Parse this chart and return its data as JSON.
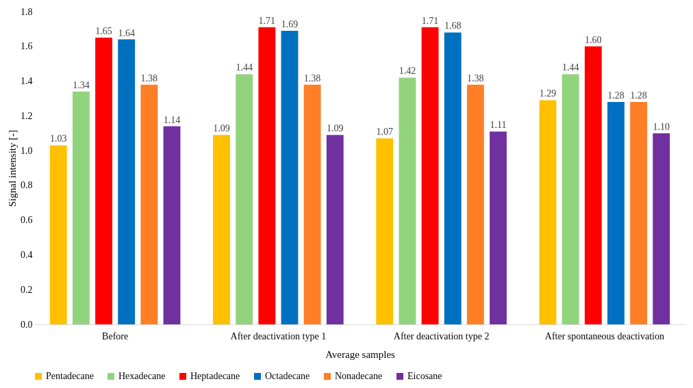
{
  "chart_data": {
    "type": "bar",
    "xlabel": "Average samples",
    "ylabel": "Signal intensity [-]",
    "categories": [
      "Before",
      "After deactivation type 1",
      "After deactivation type 2",
      "After spontaneous deactivation"
    ],
    "series": [
      {
        "name": "Pentadecane",
        "color": "#ffc000",
        "values": [
          1.03,
          1.09,
          1.07,
          1.29
        ],
        "value_labels": [
          "1.03",
          "1.09",
          "1.07",
          "1.29"
        ]
      },
      {
        "name": "Hexadecane",
        "color": "#92d37e",
        "values": [
          1.34,
          1.44,
          1.42,
          1.44
        ],
        "value_labels": [
          "1.34",
          "1.44",
          "1.42",
          "1.44"
        ]
      },
      {
        "name": "Heptadecane",
        "color": "#ff0000",
        "values": [
          1.65,
          1.71,
          1.71,
          1.6
        ],
        "value_labels": [
          "1.65",
          "1.71",
          "1.71",
          "1.60"
        ]
      },
      {
        "name": "Octadecane",
        "color": "#0070c0",
        "values": [
          1.64,
          1.69,
          1.68,
          1.28
        ],
        "value_labels": [
          "1.64",
          "1.69",
          "1.68",
          "1.28"
        ]
      },
      {
        "name": "Nonadecane",
        "color": "#ff7f27",
        "values": [
          1.38,
          1.38,
          1.38,
          1.28
        ],
        "value_labels": [
          "1.38",
          "1.38",
          "1.38",
          "1.28"
        ]
      },
      {
        "name": "Eicosane",
        "color": "#7030a0",
        "values": [
          1.14,
          1.09,
          1.11,
          1.1
        ],
        "value_labels": [
          "1.14",
          "1.09",
          "1.11",
          "1.10"
        ]
      }
    ],
    "ylim": [
      0,
      1.8
    ],
    "yticks": [
      {
        "value": 0,
        "label": "0.0"
      },
      {
        "value": 0.2,
        "label": "0.2"
      },
      {
        "value": 0.4,
        "label": "0.4"
      },
      {
        "value": 0.6,
        "label": "0.6"
      },
      {
        "value": 0.8,
        "label": "0.8"
      },
      {
        "value": 1.0,
        "label": "1.0"
      },
      {
        "value": 1.2,
        "label": "1.2"
      },
      {
        "value": 1.4,
        "label": "1.4"
      },
      {
        "value": 1.6,
        "label": "1.6"
      },
      {
        "value": 1.8,
        "label": "1.8"
      }
    ],
    "grid": false,
    "legend": "bottom"
  }
}
